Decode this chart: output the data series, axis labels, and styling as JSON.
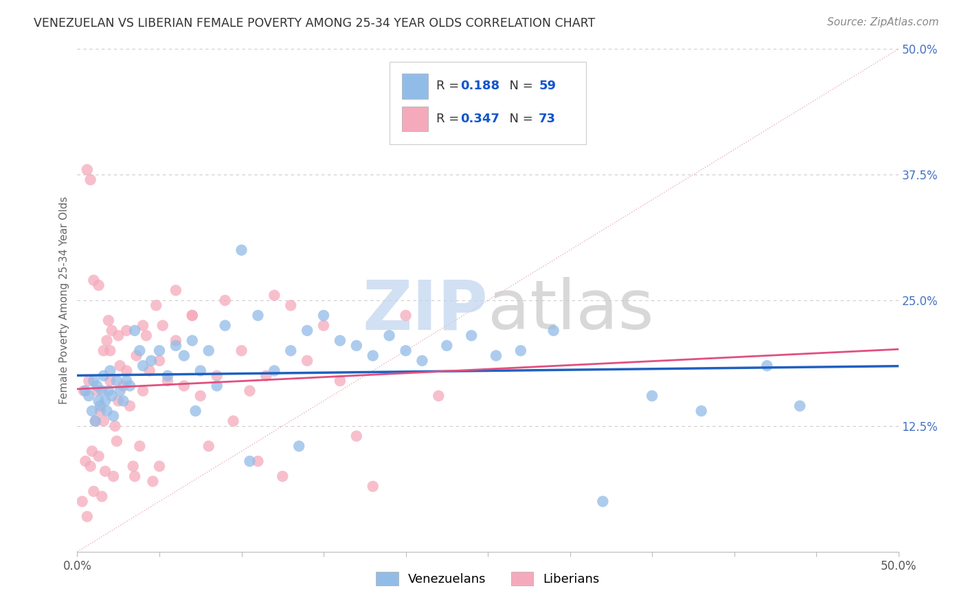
{
  "title": "VENEZUELAN VS LIBERIAN FEMALE POVERTY AMONG 25-34 YEAR OLDS CORRELATION CHART",
  "source": "Source: ZipAtlas.com",
  "ylabel": "Female Poverty Among 25-34 Year Olds",
  "xlim": [
    0,
    50
  ],
  "ylim": [
    0,
    50
  ],
  "venezuelan_R": 0.188,
  "venezuelan_N": 59,
  "liberian_R": 0.347,
  "liberian_N": 73,
  "venezuelan_color": "#92bce8",
  "liberian_color": "#f5aabb",
  "venezuelan_line_color": "#2060c0",
  "liberian_line_color": "#e05080",
  "background_color": "#ffffff",
  "grid_color": "#cccccc",
  "legend_text_color": "#1155cc",
  "watermark_zip_color": "#c5d8f0",
  "watermark_atlas_color": "#c8c8c8",
  "ref_line_color": "#e8b0b8",
  "venezuelan_x": [
    0.5,
    0.7,
    0.9,
    1.0,
    1.1,
    1.2,
    1.3,
    1.4,
    1.5,
    1.6,
    1.7,
    1.8,
    1.9,
    2.0,
    2.1,
    2.2,
    2.4,
    2.6,
    2.8,
    3.0,
    3.2,
    3.5,
    3.8,
    4.0,
    4.5,
    5.0,
    5.5,
    6.0,
    6.5,
    7.0,
    7.5,
    8.0,
    9.0,
    10.0,
    11.0,
    12.0,
    13.0,
    14.0,
    15.0,
    16.0,
    17.0,
    18.0,
    19.0,
    20.0,
    21.0,
    22.5,
    24.0,
    25.5,
    27.0,
    29.0,
    32.0,
    35.0,
    38.0,
    42.0,
    44.0,
    7.2,
    8.5,
    10.5,
    13.5
  ],
  "venezuelan_y": [
    16.0,
    15.5,
    14.0,
    17.0,
    13.0,
    16.5,
    15.0,
    14.5,
    16.0,
    17.5,
    15.0,
    14.0,
    16.0,
    18.0,
    15.5,
    13.5,
    17.0,
    16.0,
    15.0,
    17.0,
    16.5,
    22.0,
    20.0,
    18.5,
    19.0,
    20.0,
    17.5,
    20.5,
    19.5,
    21.0,
    18.0,
    20.0,
    22.5,
    30.0,
    23.5,
    18.0,
    20.0,
    22.0,
    23.5,
    21.0,
    20.5,
    19.5,
    21.5,
    20.0,
    19.0,
    20.5,
    21.5,
    19.5,
    20.0,
    22.0,
    5.0,
    15.5,
    14.0,
    18.5,
    14.5,
    14.0,
    16.5,
    9.0,
    10.5
  ],
  "liberian_x": [
    0.3,
    0.5,
    0.6,
    0.7,
    0.8,
    0.9,
    1.0,
    1.1,
    1.2,
    1.3,
    1.4,
    1.5,
    1.6,
    1.7,
    1.8,
    1.9,
    2.0,
    2.1,
    2.2,
    2.3,
    2.4,
    2.5,
    2.6,
    2.8,
    3.0,
    3.2,
    3.4,
    3.6,
    3.8,
    4.0,
    4.2,
    4.4,
    4.6,
    4.8,
    5.0,
    5.2,
    5.5,
    6.0,
    6.5,
    7.0,
    7.5,
    8.0,
    8.5,
    9.0,
    9.5,
    10.0,
    10.5,
    11.0,
    11.5,
    12.0,
    12.5,
    13.0,
    14.0,
    15.0,
    16.0,
    17.0,
    18.0,
    20.0,
    22.0,
    0.4,
    0.6,
    0.8,
    1.0,
    1.3,
    1.6,
    2.0,
    2.5,
    3.0,
    3.5,
    4.0,
    5.0,
    6.0,
    7.0
  ],
  "liberian_y": [
    5.0,
    9.0,
    3.5,
    17.0,
    8.5,
    10.0,
    6.0,
    13.0,
    16.0,
    9.5,
    14.0,
    5.5,
    20.0,
    8.0,
    21.0,
    23.0,
    17.0,
    22.0,
    7.5,
    12.5,
    11.0,
    15.0,
    18.5,
    16.5,
    22.0,
    14.5,
    8.5,
    19.5,
    10.5,
    16.0,
    21.5,
    18.0,
    7.0,
    24.5,
    19.0,
    22.5,
    17.0,
    26.0,
    16.5,
    23.5,
    15.5,
    10.5,
    17.5,
    25.0,
    13.0,
    20.0,
    16.0,
    9.0,
    17.5,
    25.5,
    7.5,
    24.5,
    19.0,
    22.5,
    17.0,
    11.5,
    6.5,
    23.5,
    15.5,
    16.0,
    38.0,
    37.0,
    27.0,
    26.5,
    13.0,
    20.0,
    21.5,
    18.0,
    7.5,
    22.5,
    8.5,
    21.0,
    23.5
  ]
}
